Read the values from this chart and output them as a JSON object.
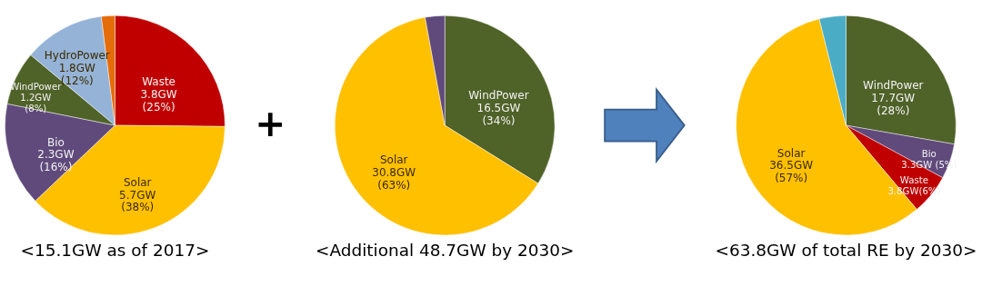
{
  "chart_data": [
    {
      "type": "pie",
      "title": "<15.1GW as of 2017>",
      "categories": [
        "Waste",
        "Solar",
        "Bio",
        "WindPower",
        "HydroPower",
        null
      ],
      "values": [
        3.8,
        5.7,
        2.3,
        1.2,
        1.8,
        0.3
      ],
      "colors": [
        "#c00000",
        "#ffc000",
        "#604a7b",
        "#4f6228",
        "#95b3d7",
        "#e46c0a"
      ],
      "value_labels": [
        "3.8GW\n(25%)",
        "5.7GW\n(38%)",
        "2.3GW\n(16%)",
        "1.2GW\n(8%)",
        "1.8GW\n(12%)",
        null
      ]
    },
    {
      "type": "pie",
      "title": "<Additional 48.7GW by 2030>",
      "annotations": [
        "+"
      ],
      "categories": [
        "WindPower",
        "Solar",
        null
      ],
      "values": [
        16.5,
        30.8,
        1.4
      ],
      "colors": [
        "#4f6228",
        "#ffc000",
        "#604a7b"
      ],
      "value_labels": [
        "16.5GW\n(34%)",
        "30.8GW\n(63%)",
        null
      ]
    },
    {
      "type": "pie",
      "title": "<63.8GW of total RE by 2030>",
      "categories": [
        "WindPower",
        "Bio",
        "Waste",
        "Solar",
        null
      ],
      "values": [
        17.7,
        3.3,
        3.8,
        36.5,
        2.5
      ],
      "colors": [
        "#4f6228",
        "#604a7b",
        "#c00000",
        "#ffc000",
        "#4bacc6"
      ],
      "value_labels": [
        "17.7GW\n(28%)",
        "3.3GW (5%)",
        "3.8GW(6%)",
        "36.5GW\n(57%)",
        null
      ]
    }
  ]
}
